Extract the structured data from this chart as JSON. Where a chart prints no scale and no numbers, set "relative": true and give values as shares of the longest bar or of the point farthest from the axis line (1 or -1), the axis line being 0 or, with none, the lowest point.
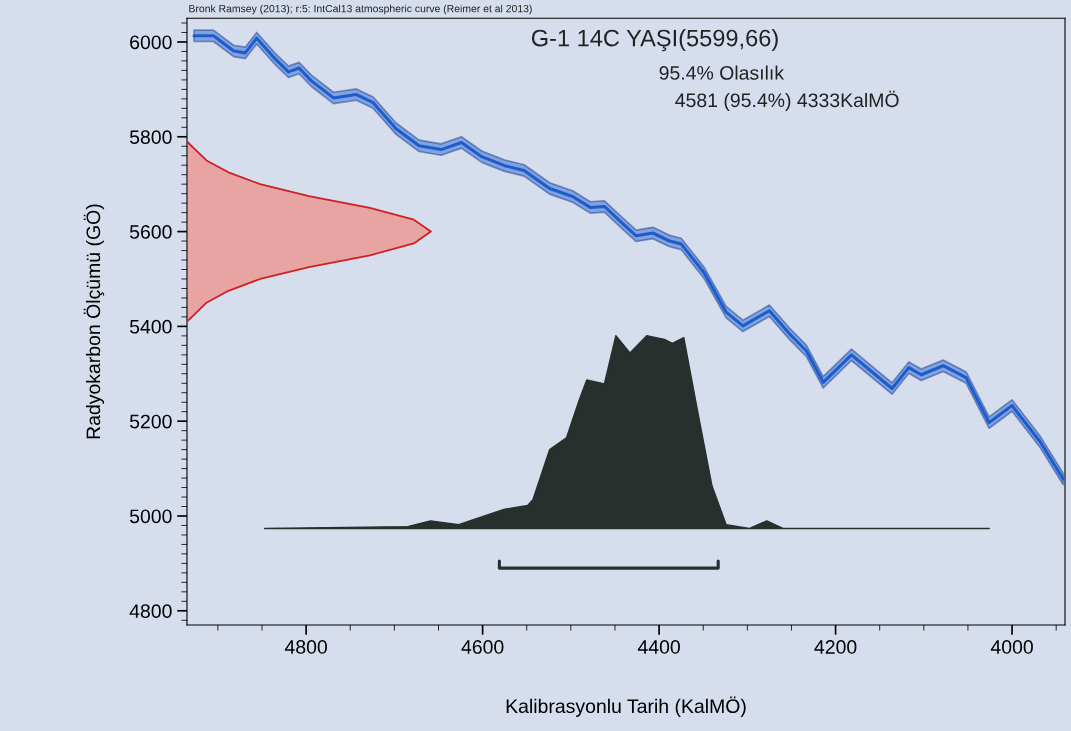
{
  "chart_data": [
    {
      "type": "line",
      "title": "G-1 14C YAŞI(5599,66)",
      "xlabel": "Kalibrasyonlu Tarih (KalMÖ)",
      "ylabel": "Radyokarbon Ölçümü (GÖ)",
      "annotations": [
        "Bronk Ramsey (2013); r:5: IntCal13 atmospheric curve (Reimer et al 2013)",
        "95.4% Olasılık",
        "4581 (95.4%) 4333KalMÖ"
      ],
      "xlim": [
        4935,
        3940
      ],
      "ylim": [
        4770,
        6050
      ],
      "xticks": [
        4800,
        4600,
        4400,
        4200,
        4000
      ],
      "yticks": [
        4800,
        5000,
        5200,
        5400,
        5600,
        5800,
        6000
      ],
      "grid": false,
      "legend": false,
      "series": [
        {
          "color": "#1c5ccc",
          "x": [
            4927,
            4905,
            4882,
            4869,
            4856,
            4836,
            4820,
            4808,
            4794,
            4769,
            4743,
            4724,
            4698,
            4672,
            4647,
            4624,
            4601,
            4575,
            4553,
            4524,
            4498,
            4478,
            4462,
            4443,
            4426,
            4407,
            4388,
            4375,
            4349,
            4324,
            4305,
            4275,
            4252,
            4233,
            4214,
            4182,
            4136,
            4117,
            4103,
            4078,
            4052,
            4026,
            4000,
            3968,
            3942
          ],
          "values": [
            6013,
            6013,
            5981,
            5977,
            6008,
            5966,
            5937,
            5945,
            5918,
            5882,
            5889,
            5872,
            5817,
            5781,
            5773,
            5788,
            5758,
            5739,
            5729,
            5691,
            5674,
            5651,
            5653,
            5620,
            5591,
            5597,
            5580,
            5574,
            5513,
            5430,
            5401,
            5433,
            5384,
            5348,
            5282,
            5340,
            5269,
            5313,
            5298,
            5317,
            5292,
            5197,
            5233,
            5156,
            5078
          ],
          "lower": [
            6001,
            6001,
            5969,
            5965,
            5996,
            5954,
            5925,
            5933,
            5906,
            5870,
            5877,
            5860,
            5805,
            5769,
            5761,
            5776,
            5746,
            5727,
            5717,
            5679,
            5662,
            5639,
            5641,
            5608,
            5579,
            5585,
            5568,
            5562,
            5501,
            5418,
            5389,
            5421,
            5372,
            5336,
            5270,
            5328,
            5257,
            5301,
            5286,
            5305,
            5280,
            5185,
            5221,
            5144,
            5066
          ],
          "upper": [
            6025,
            6025,
            5993,
            5989,
            6020,
            5978,
            5949,
            5957,
            5930,
            5894,
            5901,
            5884,
            5829,
            5793,
            5785,
            5800,
            5770,
            5751,
            5741,
            5703,
            5686,
            5663,
            5665,
            5632,
            5603,
            5609,
            5592,
            5586,
            5525,
            5442,
            5413,
            5445,
            5396,
            5360,
            5294,
            5352,
            5281,
            5325,
            5310,
            5329,
            5304,
            5209,
            5245,
            5168,
            5090
          ]
        },
        {
          "color": "#27302d",
          "x": [
            4581,
            4581,
            4333,
            4333
          ],
          "values": [
            4905,
            4890,
            4890,
            4905
          ]
        }
      ]
    },
    {
      "type": "area",
      "orientation": "horizontal",
      "relative": true,
      "tick_labels": false,
      "ylim": [
        4770,
        6050
      ],
      "series": [
        {
          "color": "#e8a3a3",
          "x": [
            5410,
            5425,
            5450,
            5475,
            5500,
            5525,
            5550,
            5575,
            5600,
            5625,
            5650,
            5675,
            5700,
            5725,
            5750,
            5775,
            5790
          ],
          "values": [
            0,
            0.03,
            0.08,
            0.17,
            0.3,
            0.5,
            0.75,
            0.93,
            1,
            0.93,
            0.75,
            0.5,
            0.3,
            0.17,
            0.08,
            0.03,
            0
          ]
        }
      ]
    },
    {
      "type": "area",
      "relative": true,
      "tick_labels": false,
      "xlim": [
        4935,
        3940
      ],
      "series": [
        {
          "color": "#27302d",
          "x": [
            4847,
            4685,
            4659,
            4627,
            4608,
            4575,
            4549,
            4543,
            4524,
            4505,
            4491,
            4482,
            4462,
            4449,
            4433,
            4414,
            4394,
            4385,
            4372,
            4356,
            4340,
            4324,
            4298,
            4278,
            4259,
            4026
          ],
          "values": [
            0,
            0.01,
            0.04,
            0.02,
            0.05,
            0.1,
            0.12,
            0.15,
            0.41,
            0.47,
            0.66,
            0.77,
            0.75,
            1,
            0.91,
            1,
            0.98,
            0.96,
            0.99,
            0.6,
            0.22,
            0.02,
            0,
            0.04,
            0,
            0
          ]
        }
      ]
    }
  ]
}
